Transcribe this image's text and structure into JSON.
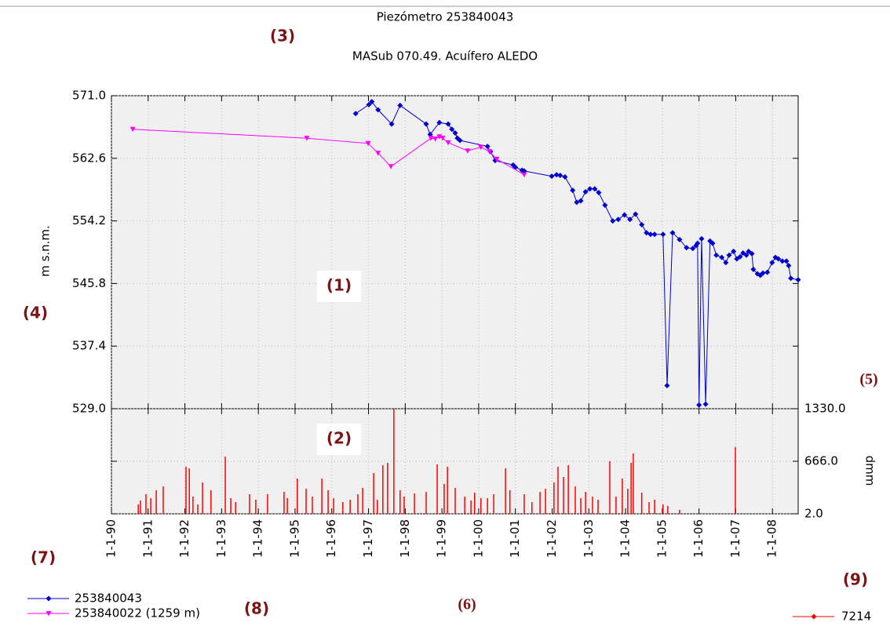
{
  "chart_data": [
    {
      "type": "line",
      "title": "Piezómetro 253840043",
      "subtitle": "MASub 070.49. Acuífero ALEDO",
      "ylabel": "m s.n.m.",
      "xlim": [
        1990,
        2008.7
      ],
      "ylim": [
        529,
        571
      ],
      "yticks": [
        {
          "value": 571,
          "label": "571.0"
        },
        562.6,
        554.2,
        545.8,
        537.4,
        {
          "value": 529,
          "label": "529.0"
        }
      ],
      "grid": true,
      "series": [
        {
          "name": "253840043",
          "color": "#0000cc",
          "marker": "diamond",
          "x": [
            1996.65,
            1997.01,
            1997.09,
            1997.26,
            1997.63,
            1997.86,
            1998.57,
            1998.68,
            1998.93,
            1999.17,
            1999.27,
            1999.36,
            1999.42,
            1999.49,
            2000.24,
            2000.32,
            2000.45,
            2000.94,
            2001.0,
            2001.18,
            2001.24,
            2001.99,
            2002.12,
            2002.22,
            2002.35,
            2002.56,
            2002.67,
            2002.78,
            2002.91,
            2003.03,
            2003.16,
            2003.27,
            2003.44,
            2003.65,
            2003.8,
            2003.97,
            2004.12,
            2004.27,
            2004.44,
            2004.57,
            2004.68,
            2004.79,
            2005.02,
            2005.13,
            2005.28,
            2005.47,
            2005.66,
            2005.83,
            2005.92,
            2005.96,
            2006.0,
            2006.07,
            2006.18,
            2006.3,
            2006.37,
            2006.47,
            2006.62,
            2006.73,
            2006.82,
            2006.94,
            2007.03,
            2007.12,
            2007.2,
            2007.29,
            2007.35,
            2007.44,
            2007.48,
            2007.59,
            2007.67,
            2007.74,
            2007.86,
            2007.99,
            2008.08,
            2008.16,
            2008.27,
            2008.38,
            2008.44,
            2008.5,
            2008.7
          ],
          "values": [
            568.6,
            569.8,
            570.2,
            569.1,
            567.2,
            569.7,
            567.2,
            565.8,
            567.4,
            567.2,
            566.5,
            566.0,
            565.3,
            565.0,
            564.2,
            563.5,
            562.3,
            561.7,
            561.4,
            561.0,
            560.9,
            560.2,
            560.4,
            560.3,
            560.1,
            558.3,
            556.7,
            556.9,
            558.1,
            558.5,
            558.5,
            558.0,
            556.3,
            554.2,
            554.4,
            555.0,
            554.4,
            555.1,
            553.7,
            552.6,
            552.4,
            552.4,
            552.4,
            532.1,
            552.6,
            551.7,
            550.6,
            550.5,
            550.9,
            551.2,
            529.5,
            551.8,
            529.6,
            551.5,
            551.2,
            549.6,
            549.3,
            548.6,
            549.6,
            550.1,
            549.1,
            549.4,
            549.9,
            549.6,
            550.1,
            549.8,
            547.7,
            547.1,
            546.9,
            547.2,
            547.3,
            548.6,
            549.3,
            549.1,
            548.8,
            548.8,
            548.2,
            546.5,
            546.3
          ]
        },
        {
          "name": "253840022 (1259 m)",
          "color": "#ff00ff",
          "marker": "triangle-down",
          "x": [
            1990.58,
            1995.32,
            1996.99,
            1997.26,
            1997.61,
            1998.7,
            1998.82,
            1998.93,
            1999.02,
            1999.17,
            1999.7,
            2000.06,
            2000.3,
            2000.49,
            2001.24
          ],
          "values": [
            566.5,
            565.3,
            564.6,
            563.3,
            561.5,
            565.3,
            565.2,
            565.5,
            565.3,
            564.7,
            563.6,
            564.1,
            563.5,
            562.5,
            560.4
          ]
        }
      ]
    },
    {
      "type": "bar",
      "ylabel": "dmm",
      "xlim": [
        1990,
        2008.7
      ],
      "ylim": [
        2,
        1330
      ],
      "xticks": [
        {
          "value": 1990,
          "label": "1-1-90"
        },
        {
          "value": 1991,
          "label": "1-1-91"
        },
        {
          "value": 1992,
          "label": "1-1-92"
        },
        {
          "value": 1993,
          "label": "1-1-93"
        },
        {
          "value": 1994,
          "label": "1-1-94"
        },
        {
          "value": 1995,
          "label": "1-1-95"
        },
        {
          "value": 1996,
          "label": "1-1-96"
        },
        {
          "value": 1997,
          "label": "1-1-97"
        },
        {
          "value": 1998,
          "label": "1-1-98"
        },
        {
          "value": 1999,
          "label": "1-1-99"
        },
        {
          "value": 2000,
          "label": "1-1-00"
        },
        {
          "value": 2001,
          "label": "1-1-01"
        },
        {
          "value": 2002,
          "label": "1-1-02"
        },
        {
          "value": 2003,
          "label": "1-1-03"
        },
        {
          "value": 2004,
          "label": "1-1-04"
        },
        {
          "value": 2005,
          "label": "1-1-05"
        },
        {
          "value": 2006,
          "label": "1-1-06"
        },
        {
          "value": 2007,
          "label": "1-1-07"
        },
        {
          "value": 2008,
          "label": "1-1-08"
        }
      ],
      "yticks": [
        {
          "value": 1330,
          "label": "1330.0"
        },
        {
          "value": 666,
          "label": "666.0"
        },
        {
          "value": 2,
          "label": "2.0"
        }
      ],
      "grid": true,
      "x": [
        1990.73,
        1990.79,
        1990.94,
        1991.07,
        1991.22,
        1991.41,
        1992.03,
        1992.12,
        1992.22,
        1992.35,
        1992.48,
        1992.71,
        1993.1,
        1993.25,
        1993.38,
        1993.76,
        1993.93,
        1994.25,
        1994.7,
        1994.79,
        1995.06,
        1995.3,
        1995.47,
        1995.73,
        1995.9,
        1996.05,
        1996.3,
        1996.5,
        1996.71,
        1996.84,
        1997.14,
        1997.24,
        1997.39,
        1997.52,
        1997.69,
        1997.86,
        1997.97,
        1998.25,
        1998.57,
        1998.87,
        1999.06,
        1999.15,
        1999.36,
        1999.62,
        1999.79,
        1999.89,
        2000.06,
        2000.24,
        2000.41,
        2000.73,
        2000.85,
        2001.24,
        2001.45,
        2001.67,
        2001.82,
        2002.05,
        2002.16,
        2002.31,
        2002.44,
        2002.63,
        2002.78,
        2002.91,
        2003.1,
        2003.25,
        2003.57,
        2003.74,
        2003.91,
        2004.06,
        2004.15,
        2004.21,
        2004.44,
        2004.64,
        2004.79,
        2005.02,
        2005.15,
        2005.47,
        2006.99
      ],
      "series": [
        {
          "name": "7214",
          "color": "#ff0000",
          "marker": "diamond",
          "values": [
            121,
            170,
            250,
            200,
            300,
            349,
            597,
            577,
            220,
            121,
            398,
            300,
            725,
            200,
            151,
            250,
            180,
            250,
            279,
            200,
            448,
            319,
            220,
            448,
            300,
            200,
            151,
            180,
            250,
            329,
            517,
            180,
            616,
            646,
            1330,
            300,
            220,
            260,
            279,
            626,
            379,
            597,
            329,
            220,
            170,
            270,
            200,
            200,
            250,
            577,
            300,
            250,
            151,
            279,
            319,
            398,
            597,
            468,
            616,
            349,
            200,
            279,
            220,
            180,
            666,
            220,
            448,
            319,
            646,
            765,
            270,
            151,
            180,
            121,
            101,
            52,
            844
          ]
        }
      ]
    }
  ],
  "annotations": [
    "(1)",
    "(2)",
    "(3)",
    "(4)",
    "(5)",
    "(6)",
    "(7)",
    "(8)",
    "(9)"
  ]
}
